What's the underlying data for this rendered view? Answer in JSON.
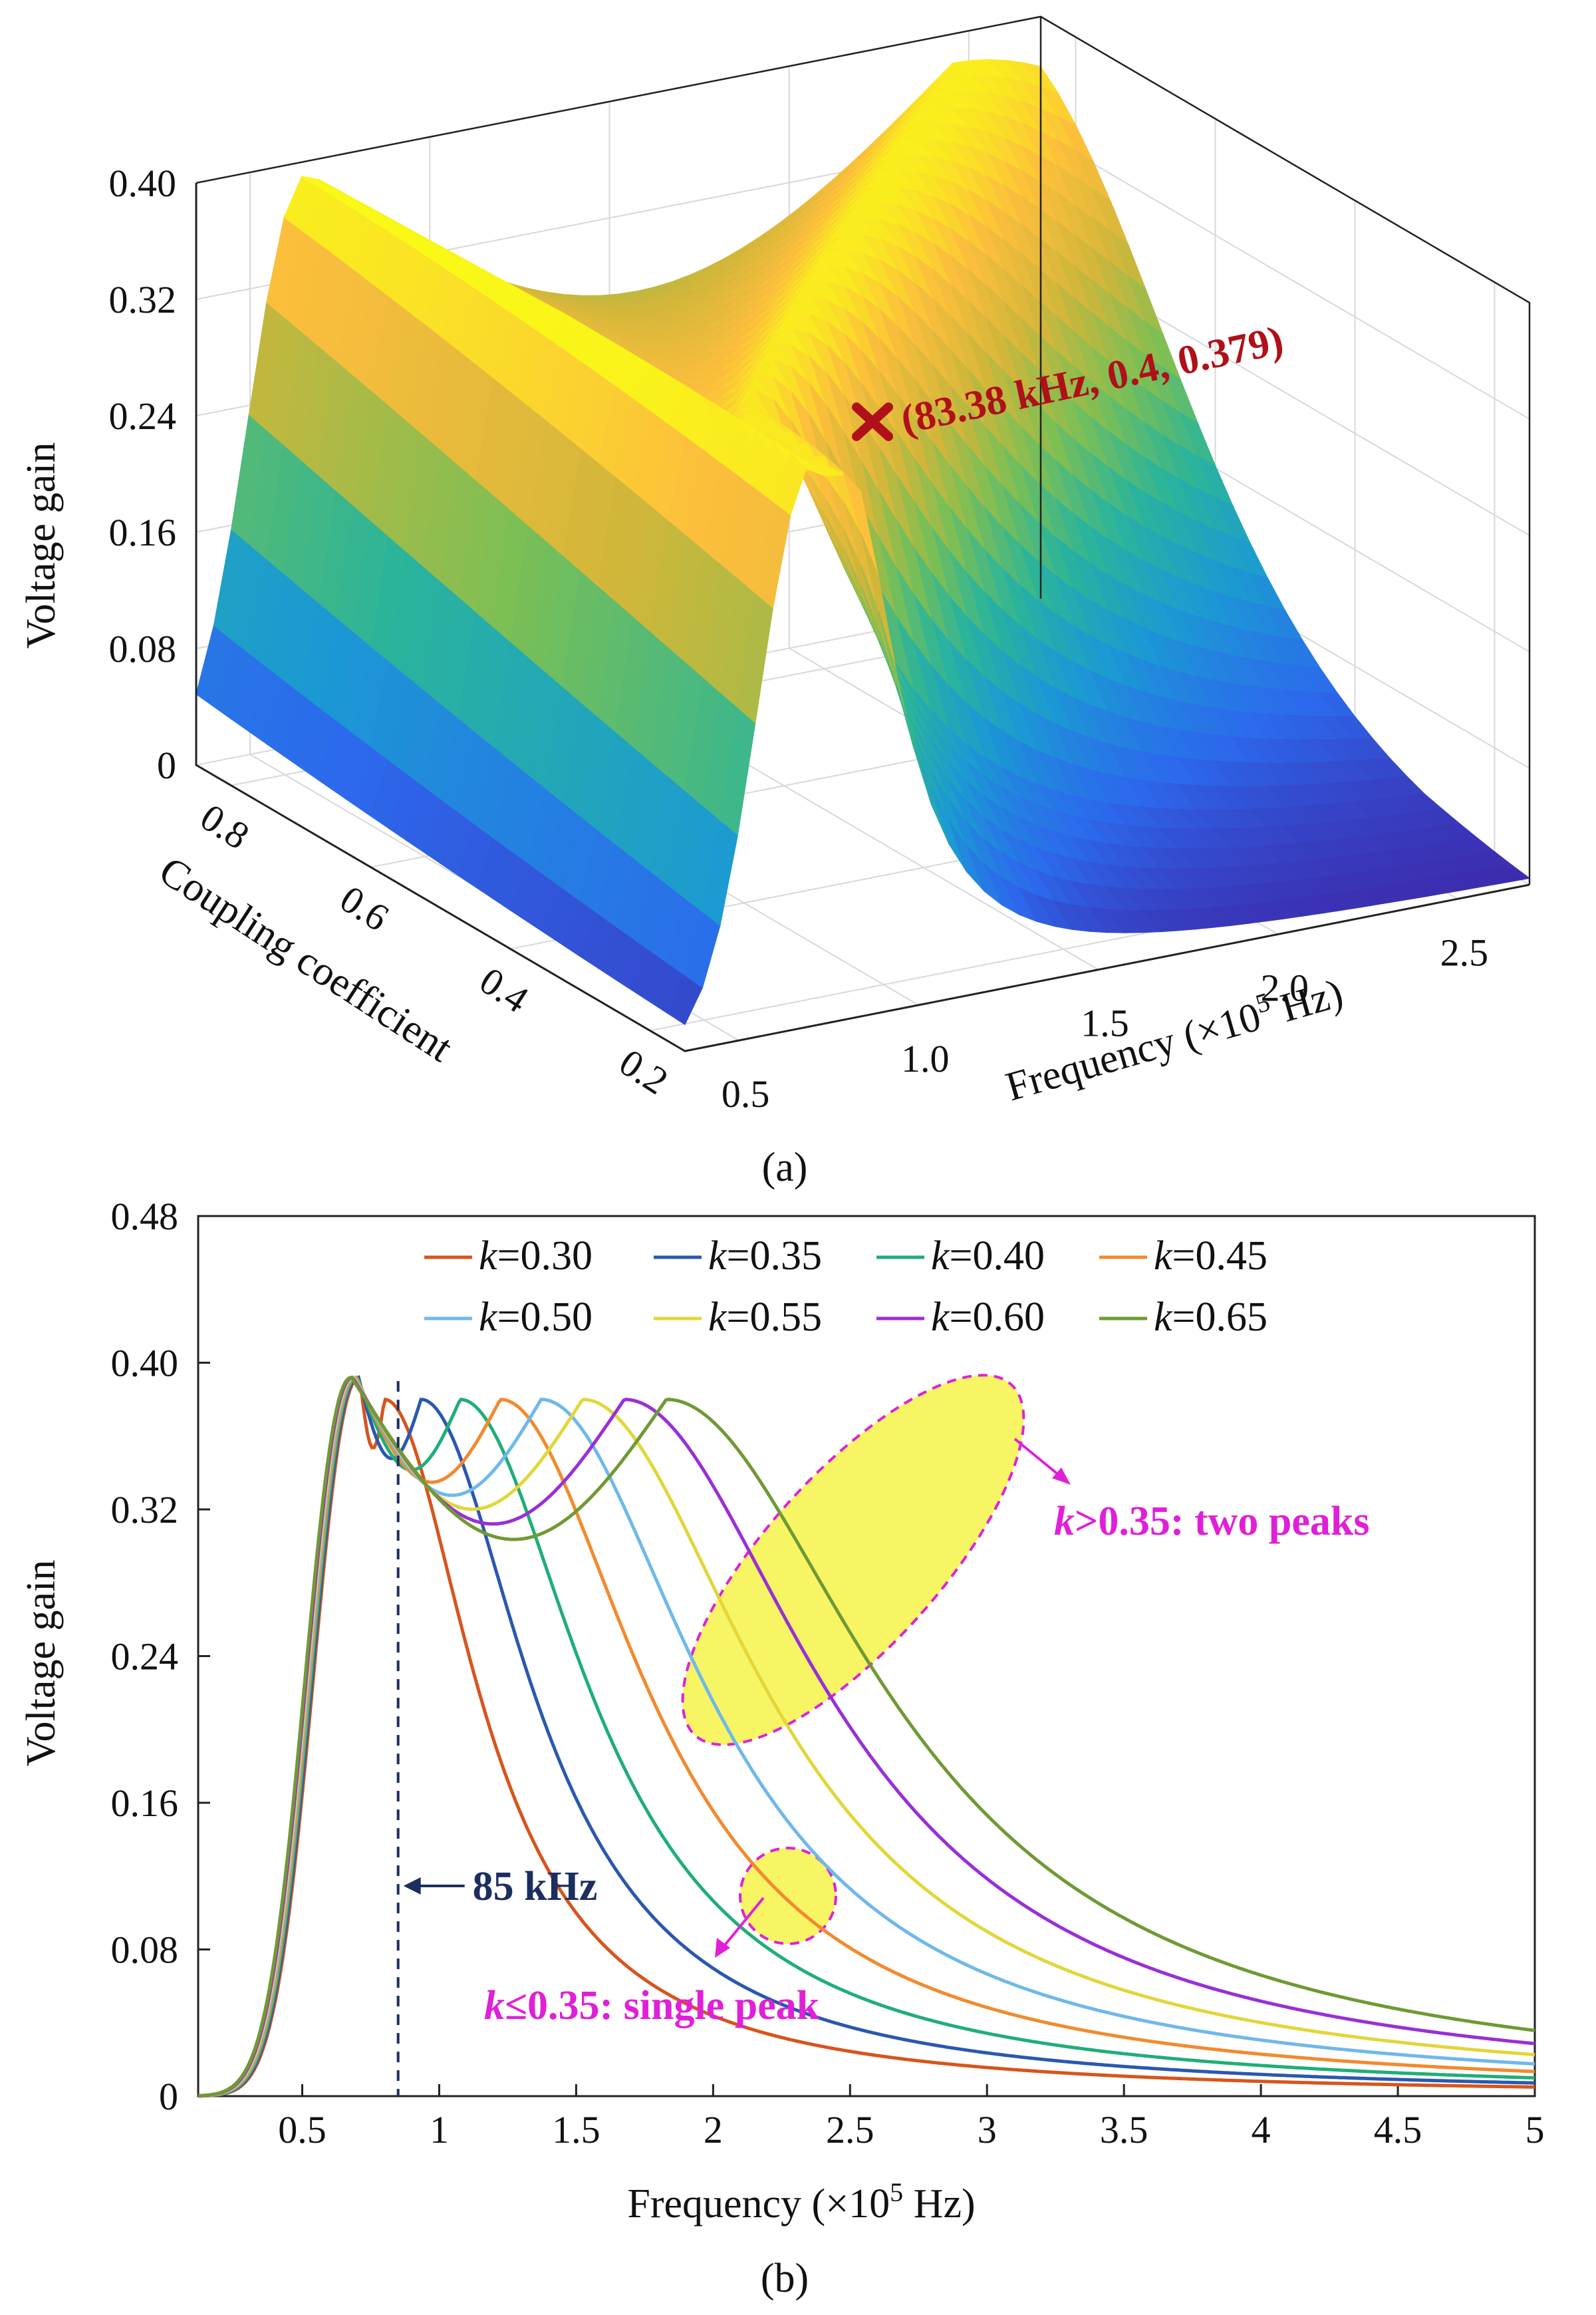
{
  "chart_data": [
    {
      "type": "surface3d",
      "panel_label": "(a)",
      "zlabel": "Voltage gain",
      "ylabel": "Coupling coefficient",
      "xlabel_main": "Frequency (×10",
      "xlabel_exp": "5",
      "xlabel_tail": " Hz)",
      "zticks": [
        "0",
        "0.08",
        "0.16",
        "0.24",
        "0.32",
        "0.40"
      ],
      "kticks": [
        "0.8",
        "0.6",
        "0.4",
        "0.2"
      ],
      "fticks": [
        "0.5",
        "1.0",
        "1.5",
        "2.0",
        "2.5"
      ],
      "zlim": [
        0,
        0.4
      ],
      "klim": [
        0.15,
        0.85
      ],
      "flim": [
        0.35,
        2.7
      ],
      "colormap": [
        "#3e26a8",
        "#2c69ed",
        "#1b9ad3",
        "#2bb49a",
        "#7bbf55",
        "#d0b63a",
        "#fcbe3c",
        "#f9fb15"
      ],
      "marker": {
        "frequency_khz": 83.38,
        "k": 0.4,
        "gain": 0.379,
        "label": "(83.38 kHz, 0.4, 0.379)",
        "color": "#b01018"
      }
    },
    {
      "type": "line",
      "panel_label": "(b)",
      "xlabel_main": "Frequency (×10",
      "xlabel_exp": "5",
      "xlabel_tail": " Hz)",
      "ylabel": "Voltage gain",
      "xlim": [
        0.12,
        5.0
      ],
      "ylim": [
        0,
        0.48
      ],
      "xticks": [
        "0.5",
        "1",
        "1.5",
        "2",
        "2.5",
        "3",
        "3.5",
        "4",
        "4.5",
        "5"
      ],
      "yticks": [
        "0",
        "0.08",
        "0.16",
        "0.24",
        "0.32",
        "0.40",
        "0.48"
      ],
      "legend_prefix": "k",
      "series": [
        {
          "name": "=0.30",
          "k": 0.3,
          "color": "#d8541c"
        },
        {
          "name": "=0.35",
          "k": 0.35,
          "color": "#2a58b0"
        },
        {
          "name": "=0.40",
          "k": 0.4,
          "color": "#1fae78"
        },
        {
          "name": "=0.45",
          "k": 0.45,
          "color": "#f28a2e"
        },
        {
          "name": "=0.50",
          "k": 0.5,
          "color": "#6fb8ea"
        },
        {
          "name": "=0.55",
          "k": 0.55,
          "color": "#e2d63a"
        },
        {
          "name": "=0.60",
          "k": 0.6,
          "color": "#9a2fd6"
        },
        {
          "name": "=0.65",
          "k": 0.65,
          "color": "#6f9a34"
        }
      ],
      "reference_line": {
        "frequency": 0.85,
        "label": "85 kHz"
      },
      "annotations": {
        "two_peaks_k": "k",
        "two_peaks_text": ">0.35: two peaks",
        "single_k": "k",
        "single_text": "≤0.35: single peak"
      }
    }
  ]
}
